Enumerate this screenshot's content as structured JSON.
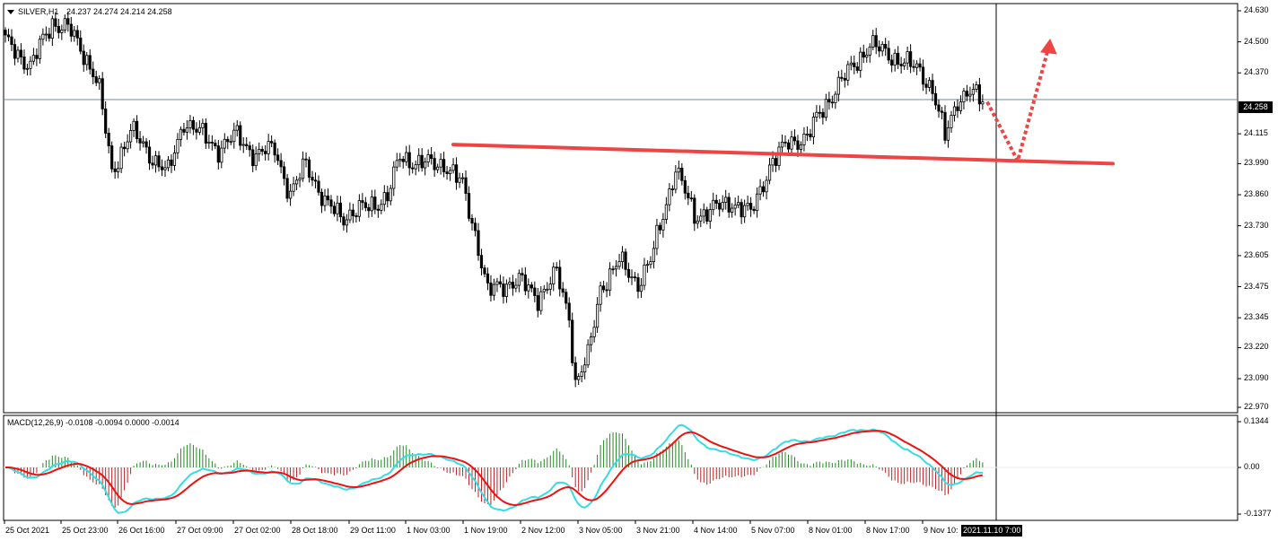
{
  "header": {
    "symbol": "SILVER,H1",
    "ohlc": "24.237 24.274 24.214 24.258"
  },
  "macd": {
    "label": "MACD(12,26,9) -0.0108 -0.0094 0.0000 -0.0014"
  },
  "chart_data": [
    {
      "type": "candlestick",
      "symbol": "SILVER",
      "timeframe": "H1",
      "ylim": [
        22.97,
        24.66
      ],
      "y_ticks": [
        "24.630",
        "24.500",
        "24.370",
        "24.258",
        "24.115",
        "23.990",
        "23.860",
        "23.730",
        "23.605",
        "23.475",
        "23.345",
        "23.220",
        "23.090",
        "22.970"
      ],
      "x_ticks": [
        "25 Oct 2021",
        "25 Oct 23:00",
        "26 Oct 16:00",
        "27 Oct 09:00",
        "27 Oct 02:00",
        "28 Oct 18:00",
        "29 Oct 11:00",
        "1 Nov 03:00",
        "1 Nov 19:00",
        "2 Nov 12:00",
        "3 Nov 05:00",
        "3 Nov 21:00",
        "4 Nov 14:00",
        "5 Nov 07:00",
        "8 Nov 01:00",
        "8 Nov 17:00",
        "9 Nov 10:"
      ],
      "current_price": "24.258",
      "current_time": "2021.11.10 7:00",
      "close_anchors": [
        [
          0,
          24.5
        ],
        [
          8,
          24.4
        ],
        [
          15,
          24.58
        ],
        [
          20,
          24.56
        ],
        [
          28,
          24.38
        ],
        [
          30,
          24.3
        ],
        [
          34,
          23.95
        ],
        [
          40,
          24.13
        ],
        [
          46,
          24.03
        ],
        [
          52,
          23.95
        ],
        [
          57,
          24.17
        ],
        [
          62,
          24.12
        ],
        [
          68,
          24.05
        ],
        [
          74,
          24.11
        ],
        [
          80,
          24.02
        ],
        [
          86,
          24.06
        ],
        [
          91,
          23.85
        ],
        [
          96,
          24.0
        ],
        [
          102,
          23.82
        ],
        [
          108,
          23.77
        ],
        [
          116,
          23.81
        ],
        [
          122,
          23.85
        ],
        [
          126,
          24.02
        ],
        [
          132,
          23.99
        ],
        [
          140,
          23.99
        ],
        [
          146,
          23.9
        ],
        [
          150,
          23.7
        ],
        [
          154,
          23.45
        ],
        [
          158,
          23.48
        ],
        [
          164,
          23.5
        ],
        [
          170,
          23.43
        ],
        [
          176,
          23.53
        ],
        [
          180,
          23.35
        ],
        [
          182,
          23.07
        ],
        [
          186,
          23.18
        ],
        [
          190,
          23.47
        ],
        [
          196,
          23.58
        ],
        [
          202,
          23.49
        ],
        [
          206,
          23.58
        ],
        [
          210,
          23.78
        ],
        [
          214,
          23.97
        ],
        [
          220,
          23.77
        ],
        [
          226,
          23.8
        ],
        [
          232,
          23.83
        ],
        [
          238,
          23.78
        ],
        [
          244,
          23.98
        ],
        [
          250,
          24.08
        ],
        [
          256,
          24.1
        ],
        [
          260,
          24.2
        ],
        [
          266,
          24.32
        ],
        [
          272,
          24.42
        ],
        [
          276,
          24.49
        ],
        [
          280,
          24.46
        ],
        [
          286,
          24.42
        ],
        [
          292,
          24.38
        ],
        [
          296,
          24.3
        ],
        [
          300,
          24.1
        ],
        [
          304,
          24.26
        ],
        [
          308,
          24.29
        ],
        [
          312,
          24.25
        ]
      ],
      "trendline": {
        "color": "#ee4444",
        "from_price": 24.07,
        "to_price": 23.99
      },
      "projection": {
        "color": "#ee4444",
        "style": "dotted-arrow",
        "target_price": 24.51
      },
      "candle_colors": {
        "body": "#000000",
        "wick": "#000000"
      }
    },
    {
      "type": "macd",
      "params": "12,26,9",
      "ylim": [
        -0.1377,
        0.1344
      ],
      "y_ticks": [
        "0.1344",
        "0.00",
        "-0.1377"
      ],
      "main_color": "#ee1111",
      "signal_color": "#33dde6",
      "hist_positive_color": "#228822",
      "hist_negative_color": "#bb2222"
    }
  ]
}
